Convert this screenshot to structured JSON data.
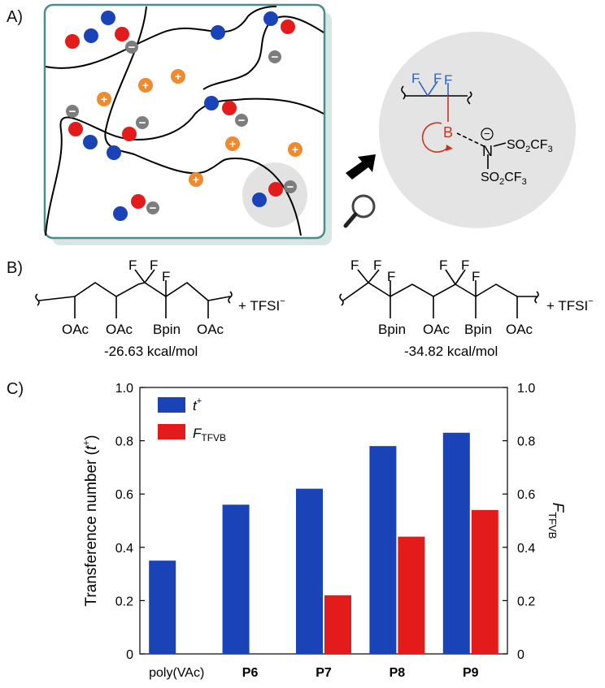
{
  "panel_labels": {
    "a": "A)",
    "b": "B)",
    "c": "C)"
  },
  "colors": {
    "blue": "#1a43b8",
    "red": "#e31b1b",
    "gray": "#7d7d7d",
    "orange": "#ef8a2f",
    "boron": "#c8351e",
    "fluorine": "#2f63c7",
    "panel_border": "#4e8c8c"
  },
  "panel_a": {
    "plus_sign": "+",
    "minus_sign": "−",
    "zoom": {
      "f_left": "F",
      "f_mid": "F",
      "f_right": "F",
      "boron": "B",
      "nitrogen": "N",
      "charge": "−",
      "sulfonyl": "SO",
      "sub2": "2",
      "cf": "CF",
      "sub3": "3"
    }
  },
  "panel_b": {
    "left": {
      "F1": "F",
      "F2": "F",
      "F3": "F",
      "sub1": "OAc",
      "sub2": "OAc",
      "sub3": "Bpin",
      "sub4": "OAc",
      "salt": "+ TFSI",
      "salt_sup": "−",
      "energy": "-26.63 kcal/mol"
    },
    "right": {
      "F1": "F",
      "F2": "F",
      "F3": "F",
      "F4": "F",
      "F5": "F",
      "F6": "F",
      "sub1": "Bpin",
      "sub2": "OAc",
      "sub3": "Bpin",
      "sub4": "OAc",
      "salt": "+ TFSI",
      "salt_sup": "−",
      "energy": "-34.82 kcal/mol"
    }
  },
  "chart_data": {
    "type": "bar",
    "categories": [
      "poly(VAc)",
      "P6",
      "P7",
      "P8",
      "P9"
    ],
    "series": [
      {
        "name": "t+",
        "name_main": "t",
        "name_sup": "+",
        "color": "#1a43b8",
        "values": [
          0.35,
          0.56,
          0.62,
          0.78,
          0.83
        ]
      },
      {
        "name": "FTFVB",
        "name_main": "F",
        "name_sub": "TFVB",
        "color": "#e31b1b",
        "values": [
          null,
          null,
          0.22,
          0.44,
          0.54
        ]
      }
    ],
    "ylabel_left": "Transference number (",
    "ylabel_left_italic": "t",
    "ylabel_left_sup": "+",
    "ylabel_left_close": ")",
    "ylabel_right_main": "F",
    "ylabel_right_sub": "TFVB",
    "ylim": [
      0,
      1.0
    ],
    "yticks": [
      "0",
      "0.2",
      "0.4",
      "0.6",
      "0.8",
      "1.0"
    ],
    "ytick_values": [
      0,
      0.2,
      0.4,
      0.6,
      0.8,
      1.0
    ],
    "legend_position": "top-left"
  }
}
